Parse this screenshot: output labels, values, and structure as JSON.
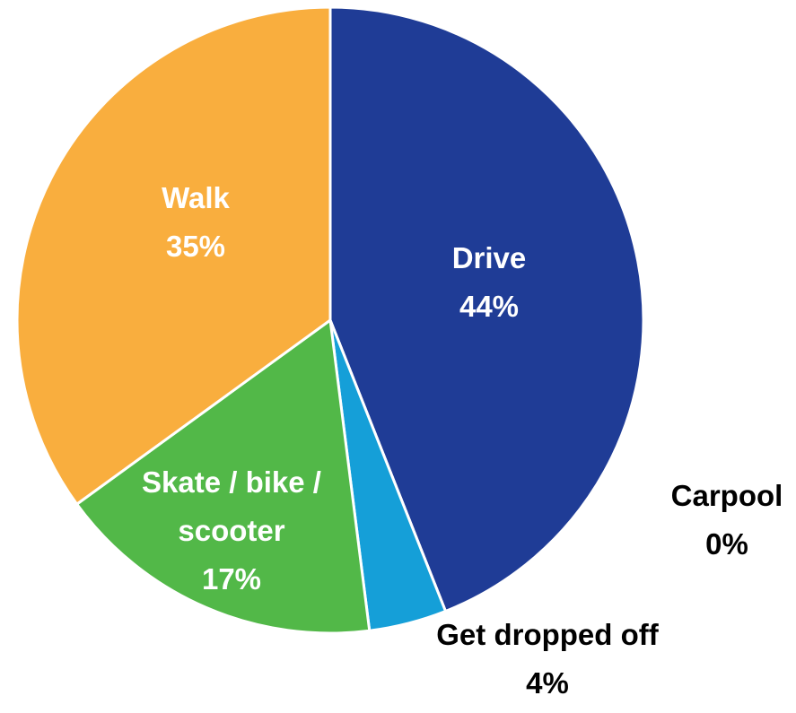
{
  "chart_data": {
    "type": "pie",
    "categories": [
      "Drive",
      "Carpool",
      "Get dropped off",
      "Skate / bike / scooter",
      "Walk"
    ],
    "values": [
      44,
      0,
      4,
      17,
      35
    ],
    "value_labels": [
      "44%",
      "0%",
      "4%",
      "17%",
      "35%"
    ],
    "colors": [
      "#1f3c96",
      "#1f3c96",
      "#159fd8",
      "#52b848",
      "#f9ae3e"
    ]
  }
}
